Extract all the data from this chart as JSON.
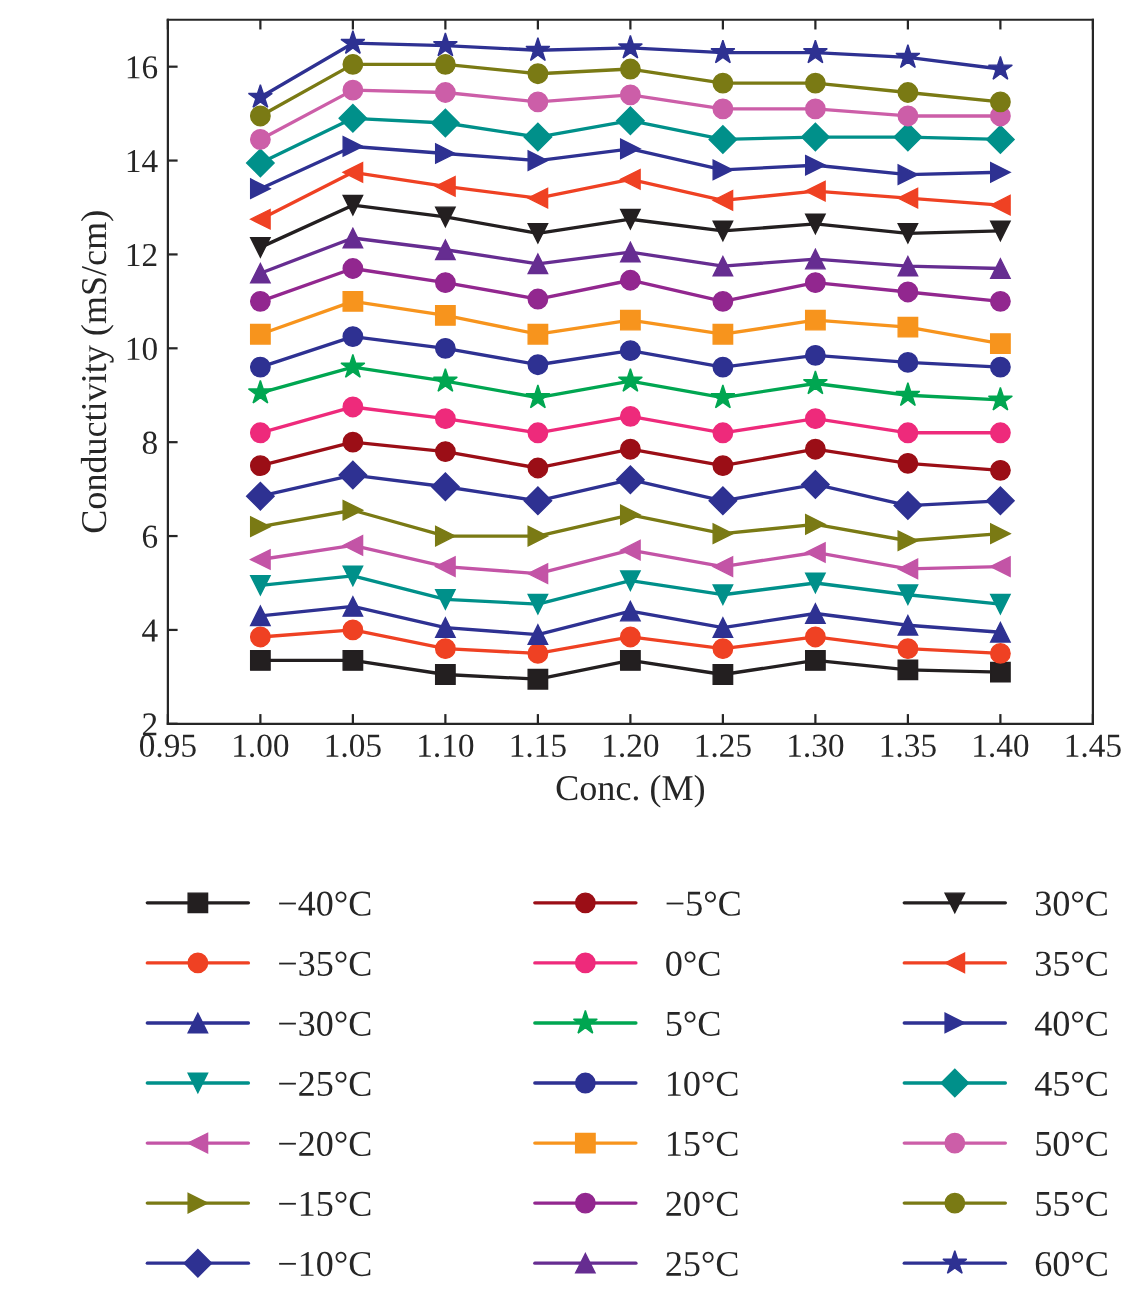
{
  "chart_data": {
    "type": "line",
    "xlabel": "Conc. (M)",
    "ylabel": "Conductivity (mS/cm)",
    "x": [
      1.0,
      1.05,
      1.1,
      1.15,
      1.2,
      1.25,
      1.3,
      1.35,
      1.4
    ],
    "xlim": [
      0.95,
      1.45
    ],
    "xticks": [
      {
        "value": 0.95,
        "label": "0.95"
      },
      {
        "value": 1.0,
        "label": "1.00"
      },
      {
        "value": 1.05,
        "label": "1.05"
      },
      {
        "value": 1.1,
        "label": "1.10"
      },
      {
        "value": 1.15,
        "label": "1.15"
      },
      {
        "value": 1.2,
        "label": "1.20"
      },
      {
        "value": 1.25,
        "label": "1.25"
      },
      {
        "value": 1.3,
        "label": "1.30"
      },
      {
        "value": 1.35,
        "label": "1.35"
      },
      {
        "value": 1.4,
        "label": "1.40"
      },
      {
        "value": 1.45,
        "label": "1.45"
      }
    ],
    "ylim": [
      2,
      17
    ],
    "yticks": [
      2,
      4,
      6,
      8,
      10,
      12,
      14,
      16
    ],
    "grid": false,
    "legend": "bottom",
    "line_style": "solid",
    "series": [
      {
        "name": "−40°C",
        "color": "#231f20",
        "marker": "square",
        "values": [
          3.35,
          3.35,
          3.05,
          2.95,
          3.35,
          3.05,
          3.35,
          3.15,
          3.1
        ]
      },
      {
        "name": "−35°C",
        "color": "#ef4123",
        "marker": "circle",
        "values": [
          3.85,
          4.0,
          3.6,
          3.5,
          3.85,
          3.6,
          3.85,
          3.6,
          3.5
        ]
      },
      {
        "name": "−30°C",
        "color": "#2e3192",
        "marker": "triangle",
        "values": [
          4.3,
          4.5,
          4.05,
          3.9,
          4.4,
          4.05,
          4.35,
          4.1,
          3.95
        ]
      },
      {
        "name": "−25°C",
        "color": "#00908a",
        "marker": "triangle_down",
        "values": [
          4.95,
          5.15,
          4.65,
          4.55,
          5.05,
          4.75,
          5.0,
          4.75,
          4.55
        ]
      },
      {
        "name": "−20°C",
        "color": "#c354a6",
        "marker": "triangle_left",
        "values": [
          5.5,
          5.8,
          5.35,
          5.2,
          5.7,
          5.35,
          5.65,
          5.3,
          5.35
        ]
      },
      {
        "name": "−15°C",
        "color": "#7a7a14",
        "marker": "triangle_right",
        "values": [
          6.2,
          6.55,
          6.0,
          6.0,
          6.45,
          6.05,
          6.25,
          5.9,
          6.05
        ]
      },
      {
        "name": "−10°C",
        "color": "#2e3192",
        "marker": "diamond",
        "values": [
          6.85,
          7.3,
          7.05,
          6.75,
          7.2,
          6.75,
          7.1,
          6.65,
          6.75
        ]
      },
      {
        "name": "−5°C",
        "color": "#9b0e16",
        "marker": "circle",
        "values": [
          7.5,
          8.0,
          7.8,
          7.45,
          7.85,
          7.5,
          7.85,
          7.55,
          7.4
        ]
      },
      {
        "name": "0°C",
        "color": "#ee2a7b",
        "marker": "circle",
        "values": [
          8.2,
          8.75,
          8.5,
          8.2,
          8.55,
          8.2,
          8.5,
          8.2,
          8.2
        ]
      },
      {
        "name": "5°C",
        "color": "#00a651",
        "marker": "star",
        "values": [
          9.05,
          9.6,
          9.3,
          8.95,
          9.3,
          8.95,
          9.25,
          9.0,
          8.9
        ]
      },
      {
        "name": "10°C",
        "color": "#2e3192",
        "marker": "circle",
        "values": [
          9.6,
          10.25,
          10.0,
          9.65,
          9.95,
          9.6,
          9.85,
          9.7,
          9.6
        ]
      },
      {
        "name": "15°C",
        "color": "#f7941d",
        "marker": "square",
        "values": [
          10.3,
          11.0,
          10.7,
          10.3,
          10.6,
          10.3,
          10.6,
          10.45,
          10.1
        ]
      },
      {
        "name": "20°C",
        "color": "#92278f",
        "marker": "circle",
        "values": [
          11.0,
          11.7,
          11.4,
          11.05,
          11.45,
          11.0,
          11.4,
          11.2,
          11.0
        ]
      },
      {
        "name": "25°C",
        "color": "#662d91",
        "marker": "triangle",
        "values": [
          11.6,
          12.35,
          12.1,
          11.8,
          12.05,
          11.75,
          11.9,
          11.75,
          11.7
        ]
      },
      {
        "name": "30°C",
        "color": "#231f20",
        "marker": "triangle_down",
        "values": [
          12.15,
          13.05,
          12.8,
          12.45,
          12.75,
          12.5,
          12.65,
          12.45,
          12.5
        ]
      },
      {
        "name": "35°C",
        "color": "#ef4123",
        "marker": "triangle_left",
        "values": [
          12.75,
          13.75,
          13.45,
          13.2,
          13.6,
          13.15,
          13.35,
          13.2,
          13.05
        ]
      },
      {
        "name": "40°C",
        "color": "#2e3192",
        "marker": "triangle_right",
        "values": [
          13.4,
          14.3,
          14.15,
          14.0,
          14.25,
          13.8,
          13.9,
          13.7,
          13.75
        ]
      },
      {
        "name": "45°C",
        "color": "#00908a",
        "marker": "diamond",
        "values": [
          13.95,
          14.9,
          14.8,
          14.5,
          14.85,
          14.45,
          14.5,
          14.5,
          14.45
        ]
      },
      {
        "name": "50°C",
        "color": "#cc5ea8",
        "marker": "circle",
        "values": [
          14.45,
          15.5,
          15.45,
          15.25,
          15.4,
          15.1,
          15.1,
          14.95,
          14.95
        ]
      },
      {
        "name": "55°C",
        "color": "#7a7a14",
        "marker": "circle",
        "values": [
          14.95,
          16.05,
          16.05,
          15.85,
          15.95,
          15.65,
          15.65,
          15.45,
          15.25
        ]
      },
      {
        "name": "60°C",
        "color": "#2e3192",
        "marker": "star",
        "values": [
          15.35,
          16.5,
          16.45,
          16.35,
          16.4,
          16.3,
          16.3,
          16.2,
          15.95
        ]
      }
    ]
  }
}
